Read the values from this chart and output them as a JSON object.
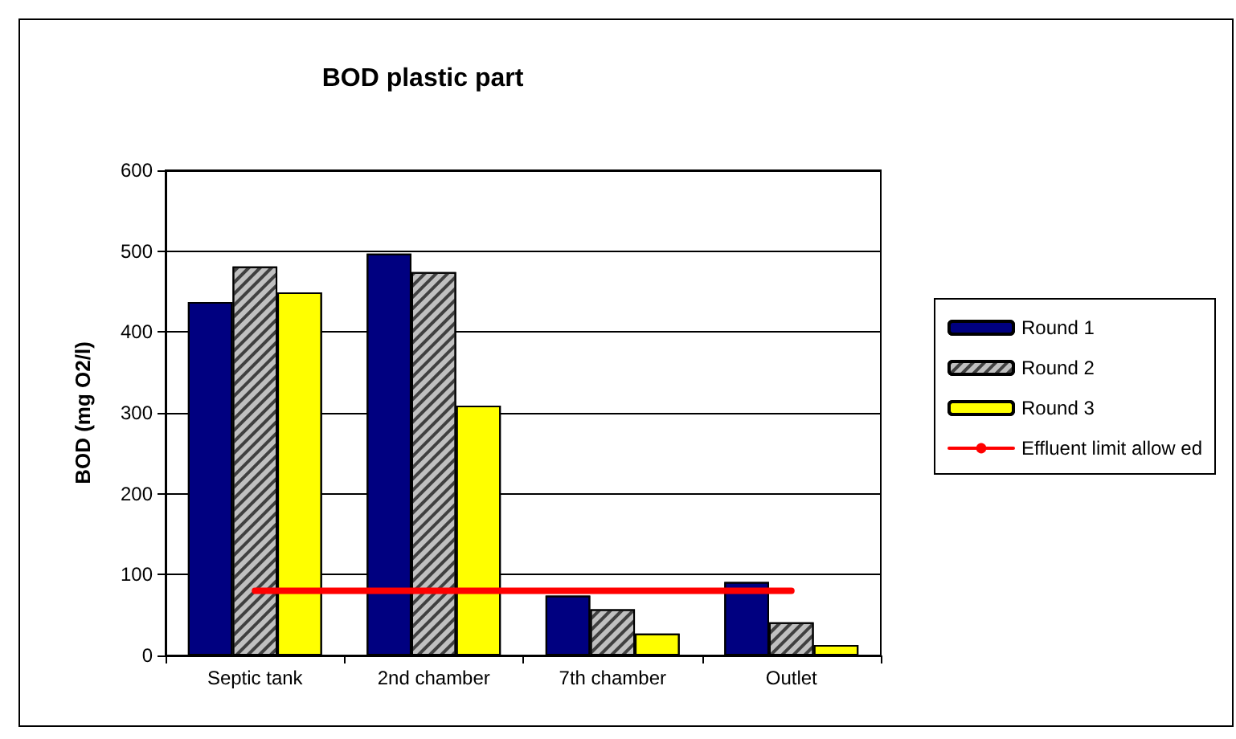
{
  "chart_data": {
    "type": "bar",
    "title": "BOD plastic part",
    "ylabel": "BOD (mg O2/l)",
    "categories": [
      "Septic tank",
      "2nd chamber",
      "7th chamber",
      "Outlet"
    ],
    "series": [
      {
        "name": "Round 1",
        "color": "#000080",
        "values": [
          437,
          497,
          74,
          91
        ]
      },
      {
        "name": "Round 2",
        "color": "#c0c0c0",
        "values": [
          481,
          474,
          57,
          41
        ]
      },
      {
        "name": "Round 3",
        "color": "#ffff00",
        "values": [
          449,
          309,
          27,
          13
        ]
      },
      {
        "name": "Effluent limit allow ed",
        "type": "line",
        "color": "#ff0000",
        "values": [
          80,
          80,
          80,
          80
        ]
      }
    ],
    "ylim": [
      0,
      600
    ],
    "yticks": [
      0,
      100,
      200,
      300,
      400,
      500,
      600
    ],
    "grid": "y",
    "legend": "right",
    "marker": "none",
    "line_style": "solid"
  }
}
